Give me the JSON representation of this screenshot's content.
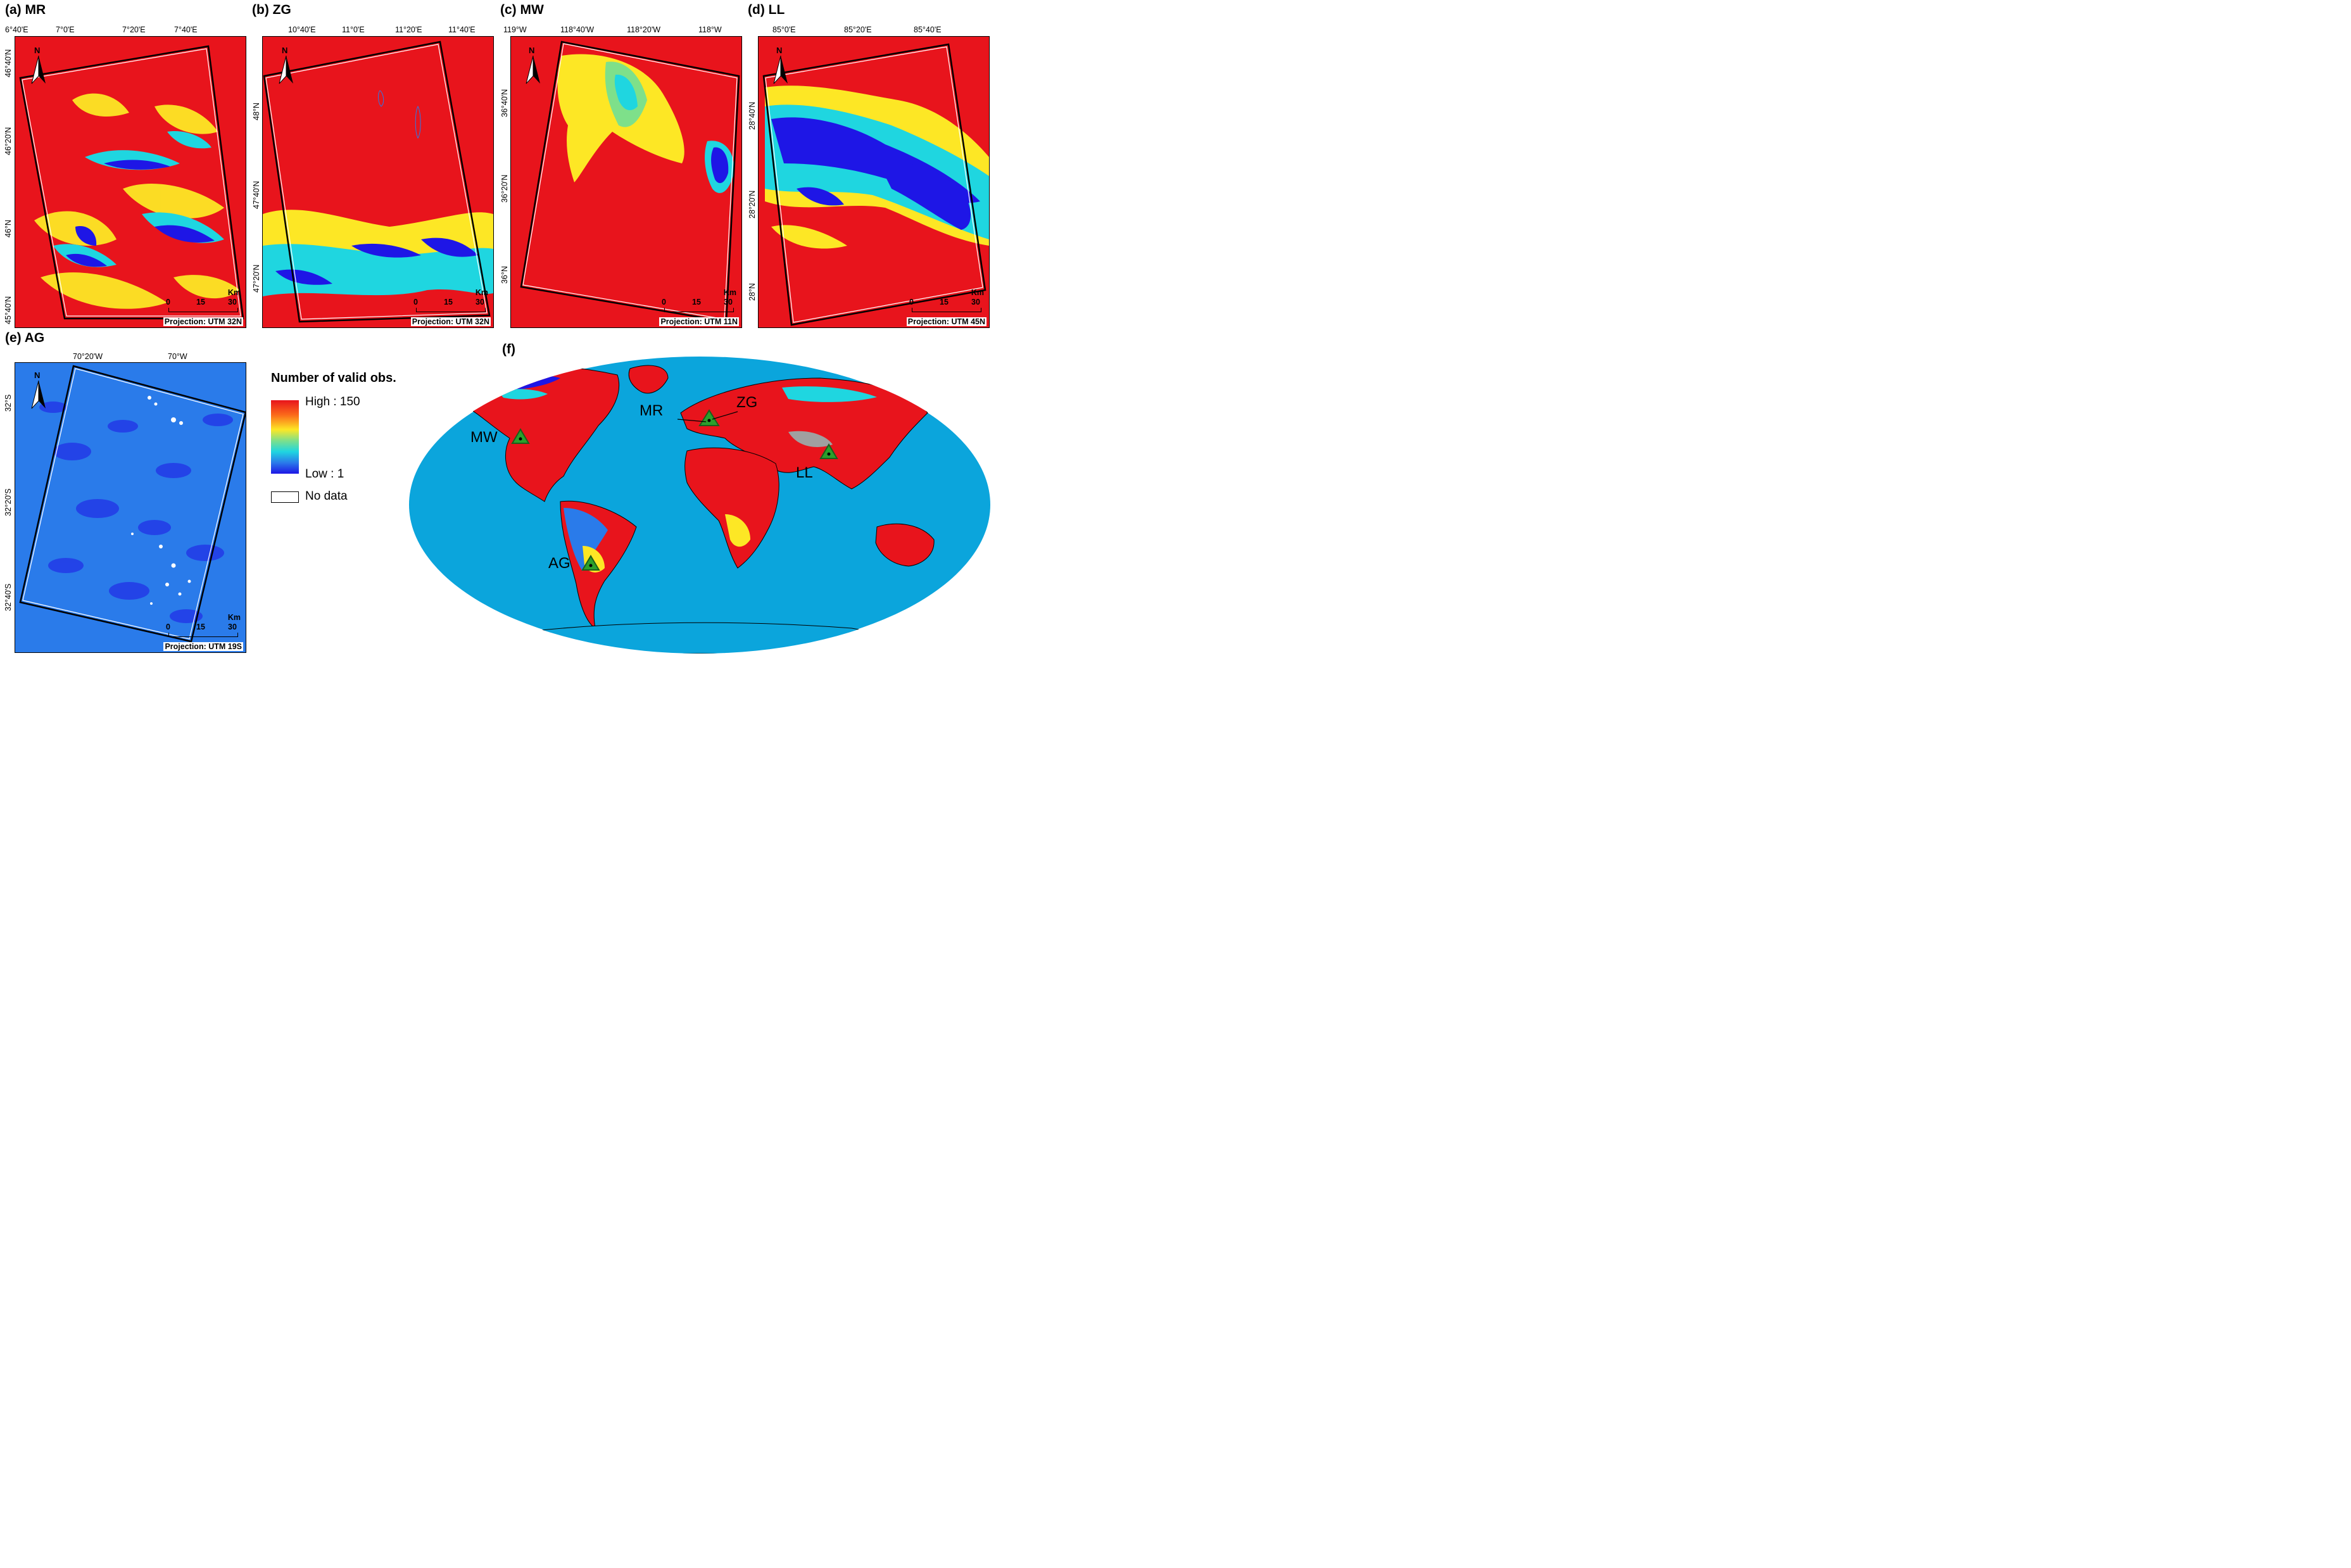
{
  "panels": {
    "a": {
      "label": "(a) MR",
      "top_lon": [
        "6°40'E",
        "7°0'E",
        "7°20'E",
        "7°40'E"
      ],
      "left_lat": [
        "46°40'N",
        "46°20'N",
        "46°N",
        "45°40'N"
      ],
      "projection": "Projection: UTM 32N"
    },
    "b": {
      "label": "(b) ZG",
      "top_lon": [
        "10°40'E",
        "11°0'E",
        "11°20'E",
        "11°40'E"
      ],
      "left_lat": [
        "48°N",
        "47°40'N",
        "47°20'N"
      ],
      "projection": "Projection: UTM 32N"
    },
    "c": {
      "label": "(c) MW",
      "top_lon": [
        "119°W",
        "118°40'W",
        "118°20'W",
        "118°W"
      ],
      "left_lat": [
        "36°40'N",
        "36°20'N",
        "36°N"
      ],
      "projection": "Projection: UTM 11N"
    },
    "d": {
      "label": "(d) LL",
      "top_lon": [
        "85°0'E",
        "85°20'E",
        "85°40'E"
      ],
      "left_lat": [
        "28°40'N",
        "28°20'N",
        "28°N"
      ],
      "projection": "Projection: UTM 45N"
    },
    "e": {
      "label": "(e) AG",
      "top_lon": [
        "70°20'W",
        "70°W"
      ],
      "left_lat": [
        "32°S",
        "32°20'S",
        "32°40'S"
      ],
      "projection": "Projection: UTM 19S"
    },
    "f": {
      "label": "(f)"
    }
  },
  "scalebar": {
    "unit": "Km",
    "ticks": [
      "0",
      "15",
      "30"
    ]
  },
  "north_arrow": {
    "letter": "N",
    "icon": "north-arrow-icon"
  },
  "legend": {
    "title": "Number of valid obs.",
    "high": "High : 150",
    "low": "Low : 1",
    "nodata": "No data",
    "colors": [
      "#e8141c",
      "#fb6a1a",
      "#fde725",
      "#7ee08a",
      "#1fd6e0",
      "#2a7bea",
      "#1e16e6"
    ]
  },
  "sites": {
    "MR": "MR",
    "ZG": "ZG",
    "MW": "MW",
    "LL": "LL",
    "AG": "AG"
  },
  "colors": {
    "high": "#e8141c",
    "ocean": "#0ba5dc",
    "low": "#1e16e6",
    "marker": "#2ca02c"
  }
}
